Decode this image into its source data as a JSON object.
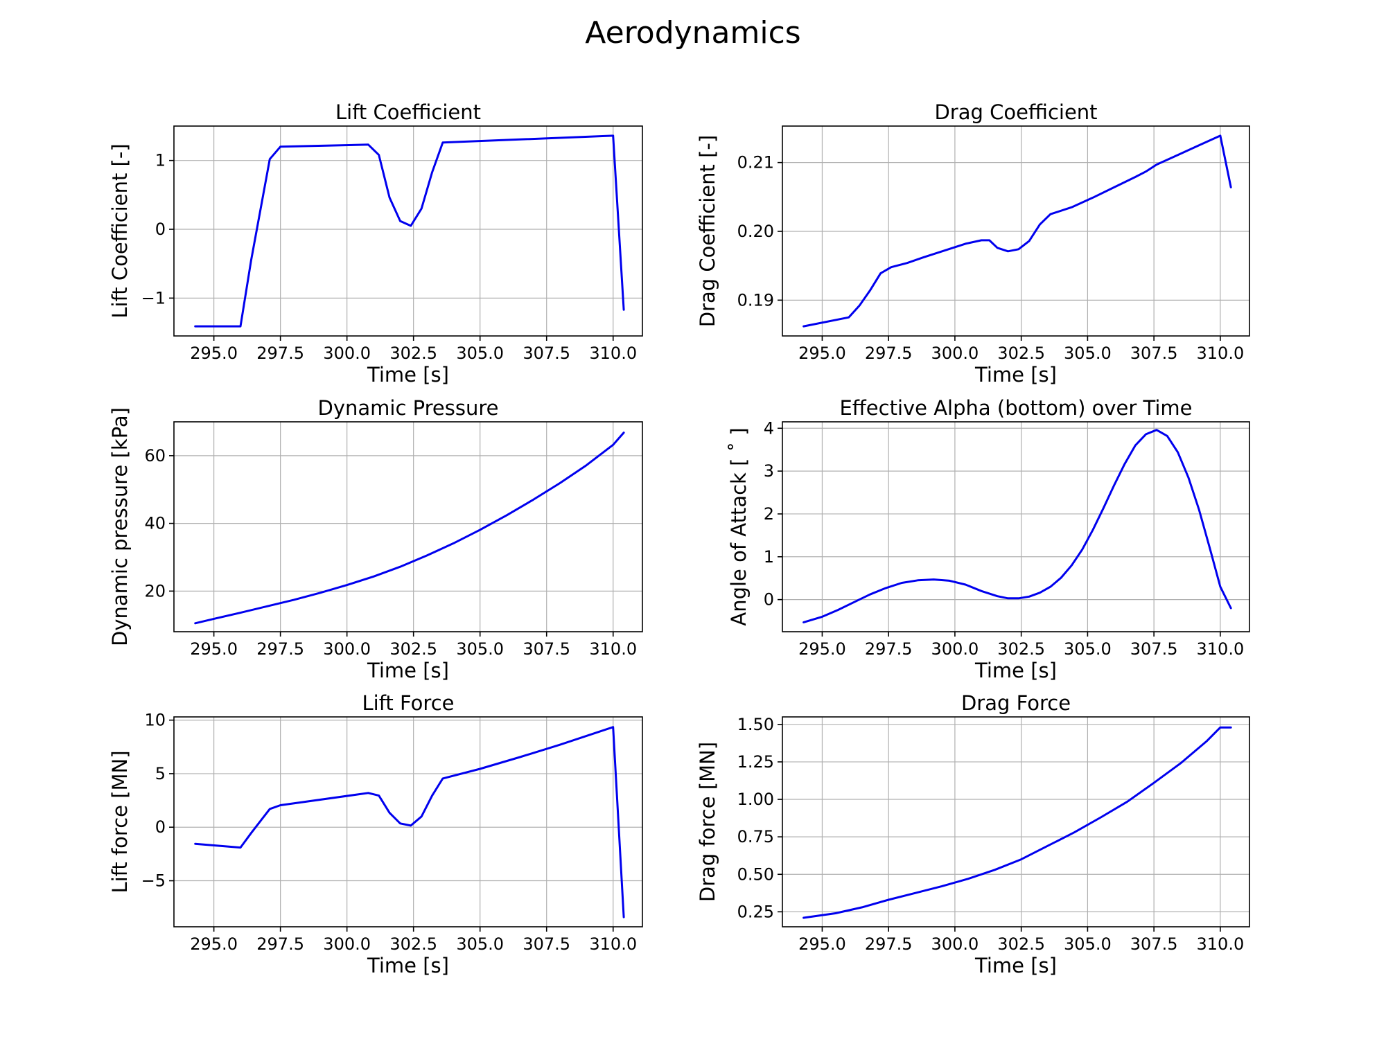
{
  "figure": {
    "title": "Aerodynamics"
  },
  "colors": {
    "line": "#0000ee",
    "grid": "#b0b0b0"
  },
  "chart_data": [
    {
      "type": "line",
      "title": "Lift Coefficient",
      "xlabel": "Time [s]",
      "ylabel": "Lift Coefficient [-]",
      "xlim": [
        293.5,
        311.1
      ],
      "ylim": [
        -1.55,
        1.5
      ],
      "xticks": [
        295.0,
        297.5,
        300.0,
        302.5,
        305.0,
        307.5,
        310.0
      ],
      "xtick_labels": [
        "295.0",
        "297.5",
        "300.0",
        "302.5",
        "305.0",
        "307.5",
        "310.0"
      ],
      "yticks": [
        -1,
        0,
        1
      ],
      "ytick_labels": [
        "−1",
        "0",
        "1"
      ],
      "grid": true,
      "series": [
        {
          "x": [
            294.3,
            296.0,
            296.4,
            297.1,
            297.5,
            300.8,
            301.2,
            301.6,
            302.0,
            302.4,
            302.8,
            303.2,
            303.6,
            310.0,
            310.4
          ],
          "y": [
            -1.41,
            -1.41,
            -0.45,
            1.02,
            1.2,
            1.23,
            1.08,
            0.46,
            0.12,
            0.05,
            0.3,
            0.83,
            1.26,
            1.36,
            -1.17
          ]
        }
      ]
    },
    {
      "type": "line",
      "title": "Drag Coefficient",
      "xlabel": "Time [s]",
      "ylabel": "Drag Coefficient [-]",
      "xlim": [
        293.5,
        311.1
      ],
      "ylim": [
        0.1848,
        0.2153
      ],
      "xticks": [
        295.0,
        297.5,
        300.0,
        302.5,
        305.0,
        307.5,
        310.0
      ],
      "xtick_labels": [
        "295.0",
        "297.5",
        "300.0",
        "302.5",
        "305.0",
        "307.5",
        "310.0"
      ],
      "yticks": [
        0.19,
        0.2,
        0.21
      ],
      "ytick_labels": [
        "0.19",
        "0.20",
        "0.21"
      ],
      "grid": true,
      "series": [
        {
          "x": [
            294.3,
            296.0,
            296.4,
            296.8,
            297.2,
            297.6,
            298.2,
            298.8,
            299.6,
            300.4,
            301.0,
            301.3,
            301.6,
            302.0,
            302.4,
            302.8,
            303.2,
            303.6,
            304.4,
            305.2,
            306.0,
            306.8,
            307.2,
            307.6,
            308.4,
            309.2,
            310.0,
            310.4
          ],
          "y": [
            0.1862,
            0.1875,
            0.1892,
            0.1914,
            0.1939,
            0.1948,
            0.1954,
            0.1962,
            0.1972,
            0.1982,
            0.1987,
            0.1987,
            0.1976,
            0.1971,
            0.1974,
            0.1986,
            0.201,
            0.2025,
            0.2035,
            0.2049,
            0.2064,
            0.2079,
            0.2087,
            0.2097,
            0.2111,
            0.2125,
            0.2139,
            0.2064
          ]
        }
      ]
    },
    {
      "type": "line",
      "title": "Dynamic Pressure",
      "xlabel": "Time [s]",
      "ylabel": "Dynamic pressure [kPa]",
      "xlim": [
        293.5,
        311.1
      ],
      "ylim": [
        8,
        70
      ],
      "xticks": [
        295.0,
        297.5,
        300.0,
        302.5,
        305.0,
        307.5,
        310.0
      ],
      "xtick_labels": [
        "295.0",
        "297.5",
        "300.0",
        "302.5",
        "305.0",
        "307.5",
        "310.0"
      ],
      "yticks": [
        20,
        40,
        60
      ],
      "ytick_labels": [
        "20",
        "40",
        "60"
      ],
      "grid": true,
      "series": [
        {
          "x": [
            294.3,
            295.0,
            296.0,
            297.0,
            298.0,
            299.0,
            300.0,
            301.0,
            302.0,
            303.0,
            304.0,
            305.0,
            306.0,
            307.0,
            308.0,
            309.0,
            310.0,
            310.4
          ],
          "y": [
            10.5,
            11.8,
            13.6,
            15.5,
            17.4,
            19.5,
            21.8,
            24.3,
            27.2,
            30.5,
            34.1,
            38.1,
            42.4,
            47.0,
            51.9,
            57.2,
            63.2,
            66.8
          ]
        }
      ]
    },
    {
      "type": "line",
      "title": "Effective Alpha (bottom) over Time",
      "xlabel": "Time [s]",
      "ylabel": "Angle of Attack [ ˚ ]",
      "xlim": [
        293.5,
        311.1
      ],
      "ylim": [
        -0.75,
        4.15
      ],
      "xticks": [
        295.0,
        297.5,
        300.0,
        302.5,
        305.0,
        307.5,
        310.0
      ],
      "xtick_labels": [
        "295.0",
        "297.5",
        "300.0",
        "302.5",
        "305.0",
        "307.5",
        "310.0"
      ],
      "yticks": [
        0,
        1,
        2,
        3,
        4
      ],
      "ytick_labels": [
        "0",
        "1",
        "2",
        "3",
        "4"
      ],
      "grid": true,
      "series": [
        {
          "x": [
            294.3,
            295.0,
            295.6,
            296.2,
            296.8,
            297.4,
            298.0,
            298.6,
            299.2,
            299.8,
            300.4,
            301.0,
            301.6,
            302.0,
            302.4,
            302.8,
            303.2,
            303.6,
            304.0,
            304.4,
            304.8,
            305.2,
            305.6,
            306.0,
            306.4,
            306.8,
            307.2,
            307.6,
            308.0,
            308.4,
            308.8,
            309.2,
            309.6,
            310.0,
            310.4
          ],
          "y": [
            -0.53,
            -0.4,
            -0.24,
            -0.06,
            0.12,
            0.27,
            0.39,
            0.45,
            0.47,
            0.44,
            0.35,
            0.2,
            0.08,
            0.03,
            0.03,
            0.07,
            0.16,
            0.3,
            0.51,
            0.8,
            1.17,
            1.63,
            2.14,
            2.67,
            3.17,
            3.6,
            3.86,
            3.96,
            3.82,
            3.44,
            2.85,
            2.1,
            1.21,
            0.3,
            -0.2
          ]
        }
      ]
    },
    {
      "type": "line",
      "title": "Lift Force",
      "xlabel": "Time [s]",
      "ylabel": "Lift force [MN]",
      "xlim": [
        293.5,
        311.1
      ],
      "ylim": [
        -9.3,
        10.3
      ],
      "xticks": [
        295.0,
        297.5,
        300.0,
        302.5,
        305.0,
        307.5,
        310.0
      ],
      "xtick_labels": [
        "295.0",
        "297.5",
        "300.0",
        "302.5",
        "305.0",
        "307.5",
        "310.0"
      ],
      "yticks": [
        -5,
        0,
        5,
        10
      ],
      "ytick_labels": [
        "−5",
        "0",
        "5",
        "10"
      ],
      "grid": true,
      "series": [
        {
          "x": [
            294.3,
            296.0,
            296.4,
            297.1,
            297.5,
            300.8,
            301.2,
            301.6,
            302.0,
            302.4,
            302.8,
            303.2,
            303.6,
            305.0,
            306.5,
            308.0,
            310.0,
            310.4
          ],
          "y": [
            -1.55,
            -1.9,
            -0.55,
            1.7,
            2.05,
            3.2,
            2.95,
            1.35,
            0.35,
            0.15,
            1.0,
            2.95,
            4.55,
            5.45,
            6.55,
            7.7,
            9.35,
            -8.4
          ]
        }
      ]
    },
    {
      "type": "line",
      "title": "Drag Force",
      "xlabel": "Time [s]",
      "ylabel": "Drag force [MN]",
      "xlim": [
        293.5,
        311.1
      ],
      "ylim": [
        0.15,
        1.55
      ],
      "xticks": [
        295.0,
        297.5,
        300.0,
        302.5,
        305.0,
        307.5,
        310.0
      ],
      "xtick_labels": [
        "295.0",
        "297.5",
        "300.0",
        "302.5",
        "305.0",
        "307.5",
        "310.0"
      ],
      "yticks": [
        0.25,
        0.5,
        0.75,
        1.0,
        1.25,
        1.5
      ],
      "ytick_labels": [
        "0.25",
        "0.50",
        "0.75",
        "1.00",
        "1.25",
        "1.50"
      ],
      "grid": true,
      "series": [
        {
          "x": [
            294.3,
            295.5,
            296.5,
            297.5,
            298.5,
            299.5,
            300.5,
            301.5,
            302.5,
            303.5,
            304.5,
            305.5,
            306.5,
            307.5,
            308.5,
            309.5,
            310.0,
            310.4
          ],
          "y": [
            0.21,
            0.24,
            0.28,
            0.33,
            0.375,
            0.42,
            0.47,
            0.53,
            0.6,
            0.69,
            0.78,
            0.88,
            0.985,
            1.11,
            1.24,
            1.39,
            1.48,
            1.48
          ]
        }
      ]
    }
  ]
}
